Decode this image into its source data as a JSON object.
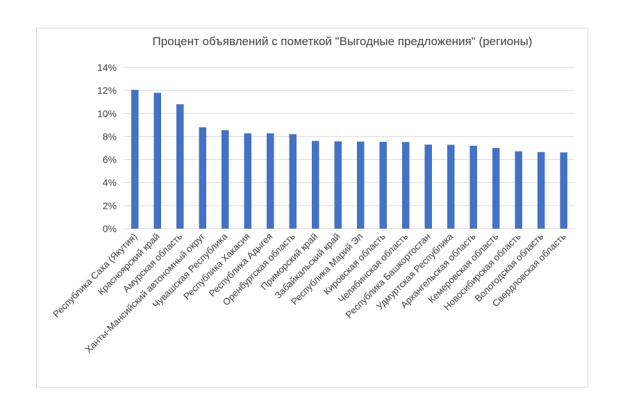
{
  "chart_data": {
    "type": "bar",
    "title": "Процент объявлений с пометкой \"Выгодные предложения\" (регионы)",
    "xlabel": "",
    "ylabel": "",
    "ylim": [
      0,
      14
    ],
    "yticks": [
      0,
      2,
      4,
      6,
      8,
      10,
      12,
      14
    ],
    "ytick_labels": [
      "0%",
      "2%",
      "4%",
      "6%",
      "8%",
      "10%",
      "12%",
      "14%"
    ],
    "grid": true,
    "bar_color": "#4472c4",
    "categories": [
      "Республика Саха (Якутия)",
      "Красноярский край",
      "Амурская область",
      "Ханты-Мансийский автономный округ",
      "Чувашская Республика",
      "Республика Хакасия",
      "Республика Адыгея",
      "Оренбургская область",
      "Приморский край",
      "Забайкальский край",
      "Республика Марий Эл",
      "Кировская область",
      "Челябинская область",
      "Республика Башкортостан",
      "Удмуртская Республика",
      "Архангельская область",
      "Кемеровская область",
      "Новосибирская область",
      "Вологодская область",
      "Свердловская область"
    ],
    "values": [
      12.05,
      11.8,
      10.8,
      8.8,
      8.55,
      8.28,
      8.28,
      8.2,
      7.62,
      7.58,
      7.56,
      7.54,
      7.52,
      7.3,
      7.28,
      7.2,
      7.0,
      6.72,
      6.65,
      6.62
    ]
  }
}
